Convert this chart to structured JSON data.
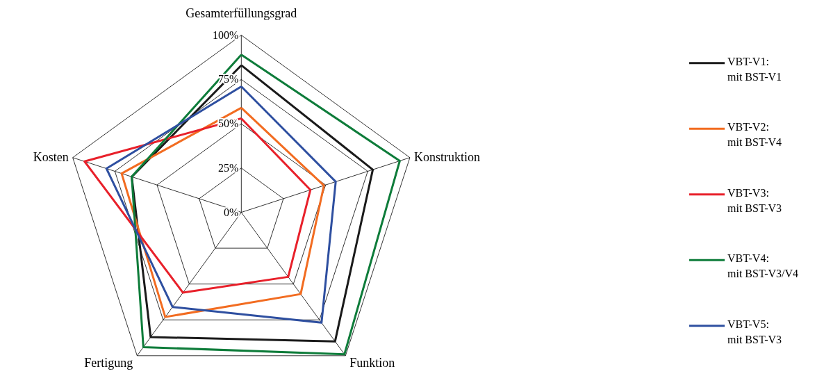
{
  "chart_data": {
    "type": "radar",
    "categories": [
      "Gesamterfüllungsgrad",
      "Konstruktion",
      "Funktion",
      "Fertigung",
      "Kosten"
    ],
    "series": [
      {
        "name": "VBT-V1:\nmit BST-V1",
        "color": "#1a1a1a",
        "values": [
          83,
          78,
          90,
          87,
          65
        ]
      },
      {
        "name": "VBT-V2:\nmit BST-V4",
        "color": "#f26c21",
        "values": [
          59,
          49,
          57,
          73,
          71
        ]
      },
      {
        "name": "VBT-V3:\nmit BST-V3",
        "color": "#e8202a",
        "values": [
          53,
          41,
          45,
          56,
          93
        ]
      },
      {
        "name": "VBT-V4:\nmit BST-V3/V4",
        "color": "#0e7c3a",
        "values": [
          89,
          94,
          99,
          94,
          65
        ]
      },
      {
        "name": "VBT-V5:\nmit BST-V3",
        "color": "#2e4fa0",
        "values": [
          71,
          56,
          77,
          66,
          80
        ]
      }
    ],
    "ylim": [
      0,
      100
    ],
    "yticks": [
      {
        "value": 0,
        "label": "0%"
      },
      {
        "value": 25,
        "label": "25%"
      },
      {
        "value": 50,
        "label": "50%"
      },
      {
        "value": 75,
        "label": "75%"
      },
      {
        "value": 100,
        "label": "100%"
      }
    ],
    "grid": true,
    "legend": "right"
  }
}
